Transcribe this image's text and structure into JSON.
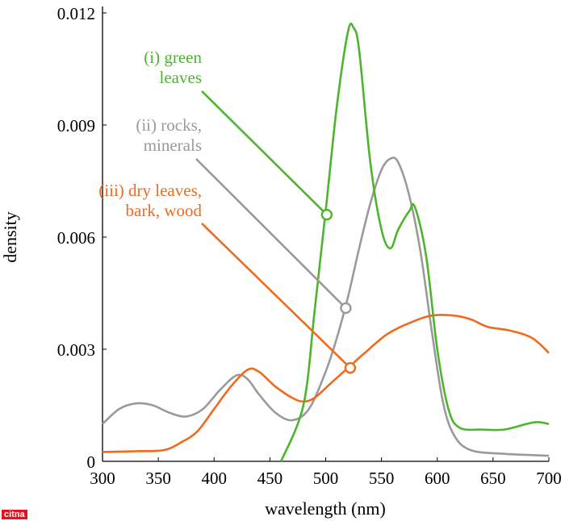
{
  "chart_data": {
    "type": "line",
    "title": "",
    "xlabel": "wavelength (nm)",
    "ylabel": "density",
    "xlim": [
      300,
      700
    ],
    "ylim": [
      0,
      0.012
    ],
    "xticks": [
      "300",
      "350",
      "400",
      "450",
      "500",
      "550",
      "600",
      "650",
      "700"
    ],
    "yticks": [
      "0",
      "0.003",
      "0.006",
      "0.009",
      "0.012"
    ],
    "grid": false,
    "series": [
      {
        "name": "(i) green leaves",
        "label_lines": [
          "(i) green",
          "leaves"
        ],
        "color": "#4cb52d",
        "marker": [
          501,
          0.0066
        ],
        "x": [
          460,
          480,
          490,
          500,
          510,
          520,
          525,
          530,
          540,
          550,
          558,
          565,
          575,
          580,
          590,
          600,
          610,
          620,
          640,
          660,
          680,
          690,
          700
        ],
        "y": [
          0,
          0.0015,
          0.004,
          0.0067,
          0.0095,
          0.0115,
          0.0116,
          0.011,
          0.008,
          0.0062,
          0.0057,
          0.0062,
          0.0067,
          0.0068,
          0.0055,
          0.003,
          0.0014,
          0.0009,
          0.00085,
          0.00085,
          0.001,
          0.00105,
          0.001
        ]
      },
      {
        "name": "(ii) rocks, minerals",
        "label_lines": [
          "(ii) rocks,",
          "minerals"
        ],
        "color": "#9a9a9a",
        "marker": [
          518,
          0.0041
        ],
        "x": [
          300,
          315,
          330,
          345,
          360,
          375,
          390,
          405,
          420,
          430,
          440,
          455,
          470,
          485,
          500,
          510,
          520,
          530,
          540,
          550,
          558,
          565,
          575,
          585,
          595,
          605,
          615,
          630,
          660,
          700
        ],
        "y": [
          0.001,
          0.0014,
          0.00155,
          0.0015,
          0.0013,
          0.0012,
          0.0014,
          0.0019,
          0.0023,
          0.0022,
          0.0018,
          0.0013,
          0.0011,
          0.0014,
          0.0024,
          0.0033,
          0.0044,
          0.0057,
          0.0069,
          0.0078,
          0.0081,
          0.008,
          0.0071,
          0.0056,
          0.0035,
          0.0016,
          0.0007,
          0.0003,
          0.0002,
          0.00015
        ]
      },
      {
        "name": "(iii) dry leaves, bark, wood",
        "label_lines": [
          "(iii) dry leaves,",
          "bark, wood"
        ],
        "color": "#f06a1e",
        "marker": [
          522,
          0.0025
        ],
        "x": [
          300,
          330,
          355,
          370,
          385,
          400,
          415,
          430,
          440,
          455,
          470,
          480,
          490,
          505,
          520,
          535,
          555,
          575,
          595,
          615,
          630,
          645,
          665,
          685,
          700
        ],
        "y": [
          0.00025,
          0.00027,
          0.0003,
          0.0005,
          0.0008,
          0.0014,
          0.002,
          0.00245,
          0.0024,
          0.002,
          0.0017,
          0.0016,
          0.0017,
          0.0021,
          0.0025,
          0.0029,
          0.0034,
          0.0037,
          0.0039,
          0.0039,
          0.0038,
          0.0036,
          0.0035,
          0.0033,
          0.0029
        ]
      }
    ]
  },
  "watermark": "citna"
}
